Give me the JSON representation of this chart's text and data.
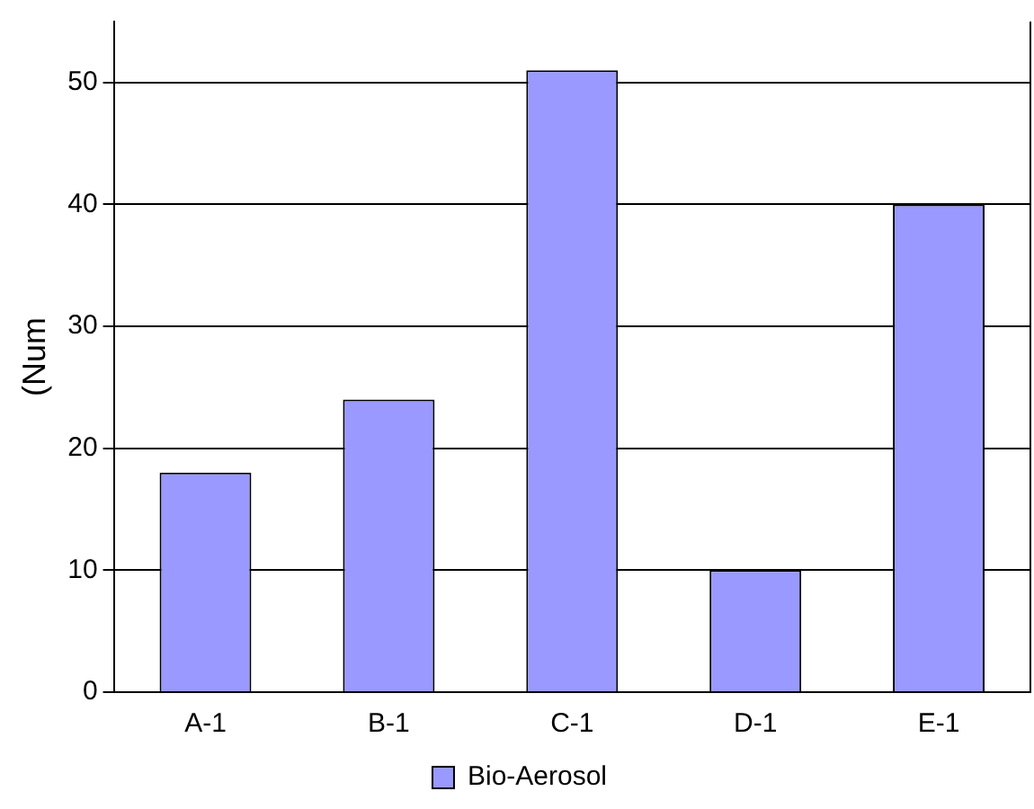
{
  "chart_data": {
    "type": "bar",
    "ylabel": "(Num",
    "categories": [
      "A-1",
      "B-1",
      "C-1",
      "D-1",
      "E-1"
    ],
    "series": [
      {
        "name": "Bio-Aerosol",
        "color": "#9999ff",
        "values": [
          18,
          24,
          51,
          10,
          40
        ]
      }
    ],
    "ylim": [
      0,
      55
    ],
    "yticks": [
      0,
      10,
      20,
      30,
      40,
      50
    ],
    "grid": "y",
    "legend": "bottom"
  }
}
